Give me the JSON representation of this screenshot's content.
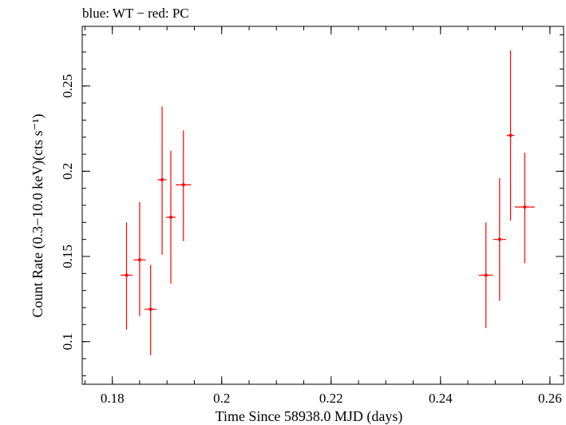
{
  "chart_data": {
    "type": "scatter",
    "title": "blue: WT − red: PC",
    "xlabel": "Time Since 58938.0 MJD (days)",
    "ylabel": "Count Rate (0.3−10.0 keV)(cts s⁻¹)",
    "xlim": [
      0.1745,
      0.2625
    ],
    "ylim": [
      0.075,
      0.285
    ],
    "x_ticks": [
      {
        "value": 0.18,
        "label": "0.18"
      },
      {
        "value": 0.2,
        "label": "0.2"
      },
      {
        "value": 0.22,
        "label": "0.22"
      },
      {
        "value": 0.24,
        "label": "0.24"
      },
      {
        "value": 0.26,
        "label": "0.26"
      }
    ],
    "y_ticks": [
      {
        "value": 0.1,
        "label": "0.1"
      },
      {
        "value": 0.15,
        "label": "0.15"
      },
      {
        "value": 0.2,
        "label": "0.2"
      },
      {
        "value": 0.25,
        "label": "0.25"
      }
    ],
    "grid": false,
    "series": [
      {
        "color": "#ff0000",
        "points": [
          {
            "x": 0.1826,
            "y": 0.139,
            "xerr": 0.0011,
            "yerr_low": 0.032,
            "yerr_high": 0.031
          },
          {
            "x": 0.185,
            "y": 0.148,
            "xerr": 0.0011,
            "yerr_low": 0.033,
            "yerr_high": 0.034
          },
          {
            "x": 0.187,
            "y": 0.119,
            "xerr": 0.0011,
            "yerr_low": 0.027,
            "yerr_high": 0.026
          },
          {
            "x": 0.1891,
            "y": 0.195,
            "xerr": 0.0008,
            "yerr_low": 0.044,
            "yerr_high": 0.043
          },
          {
            "x": 0.1907,
            "y": 0.173,
            "xerr": 0.0009,
            "yerr_low": 0.039,
            "yerr_high": 0.039
          },
          {
            "x": 0.193,
            "y": 0.192,
            "xerr": 0.0014,
            "yerr_low": 0.033,
            "yerr_high": 0.032
          },
          {
            "x": 0.2483,
            "y": 0.139,
            "xerr": 0.0013,
            "yerr_low": 0.031,
            "yerr_high": 0.031
          },
          {
            "x": 0.2508,
            "y": 0.16,
            "xerr": 0.0012,
            "yerr_low": 0.036,
            "yerr_high": 0.036
          },
          {
            "x": 0.2528,
            "y": 0.221,
            "xerr": 0.0007,
            "yerr_low": 0.05,
            "yerr_high": 0.05
          },
          {
            "x": 0.2554,
            "y": 0.179,
            "xerr": 0.0018,
            "yerr_low": 0.033,
            "yerr_high": 0.032
          }
        ]
      }
    ]
  }
}
